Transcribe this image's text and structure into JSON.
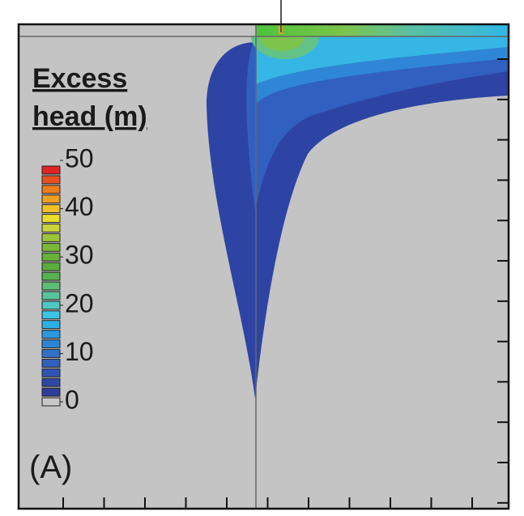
{
  "chart_data": {
    "type": "contour",
    "colorbar": {
      "title_lines": [
        "Excess",
        "head (m)"
      ],
      "clim": [
        0,
        50
      ],
      "cticks": [
        0,
        10,
        20,
        30,
        40,
        50
      ],
      "colors": [
        "#c8c8c8",
        "#2e3d99",
        "#2f48a6",
        "#3054b3",
        "#3160bf",
        "#3270c8",
        "#2f84d4",
        "#2c98de",
        "#2bb0e6",
        "#3cc4e6",
        "#4ec8c0",
        "#58c49c",
        "#5cbc78",
        "#58b050",
        "#5aac3c",
        "#68b038",
        "#7cb838",
        "#9cc43a",
        "#c8d43a",
        "#eadc2a",
        "#f2c028",
        "#f0a020",
        "#ec7c1c",
        "#e85020",
        "#e02424"
      ]
    },
    "panel_label": "(A)"
  }
}
